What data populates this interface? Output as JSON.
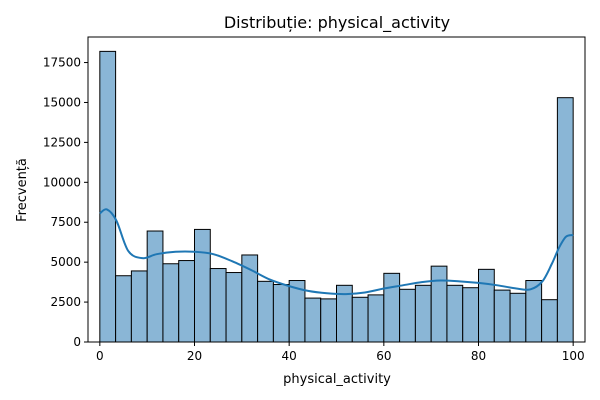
{
  "chart_data": {
    "type": "bar",
    "title": "Distribuție: physical_activity",
    "xlabel": "physical_activity",
    "ylabel": "Frecvență",
    "xlim": [
      -2.5,
      102.5
    ],
    "ylim": [
      0,
      19100
    ],
    "xticks": [
      0,
      20,
      40,
      60,
      80,
      100
    ],
    "xtick_labels": [
      "0",
      "20",
      "40",
      "60",
      "80",
      "100"
    ],
    "yticks": [
      0,
      2500,
      5000,
      7500,
      10000,
      12500,
      15000,
      17500
    ],
    "ytick_labels": [
      "0",
      "2500",
      "5000",
      "7500",
      "10000",
      "12500",
      "15000",
      "17500"
    ],
    "grid": false,
    "legend": false,
    "bin_edges": [
      0,
      3.333,
      6.667,
      10,
      13.333,
      16.667,
      20,
      23.333,
      26.667,
      30,
      33.333,
      36.667,
      40,
      43.333,
      46.667,
      50,
      53.333,
      56.667,
      60,
      63.333,
      66.667,
      70,
      73.333,
      76.667,
      80,
      83.333,
      86.667,
      90,
      93.333,
      96.667,
      100
    ],
    "values": [
      18200,
      4150,
      4450,
      6950,
      4900,
      5100,
      7050,
      4600,
      4350,
      5450,
      3800,
      3600,
      3850,
      2750,
      2700,
      3550,
      2800,
      2950,
      4300,
      3300,
      3550,
      4750,
      3550,
      3400,
      4550,
      3250,
      3050,
      3850,
      2650,
      15300
    ],
    "kde": {
      "x": [
        0,
        1.5,
        3.5,
        6,
        9,
        12,
        16,
        20,
        24,
        28,
        32,
        36,
        40,
        44,
        48,
        52,
        56,
        60,
        64,
        68,
        72,
        76,
        80,
        84,
        88,
        91,
        93.5,
        95.5,
        97,
        98.5,
        100
      ],
      "y": [
        8050,
        8300,
        7600,
        5700,
        5250,
        5500,
        5650,
        5650,
        5500,
        5050,
        4500,
        3900,
        3500,
        3200,
        3050,
        3000,
        3100,
        3350,
        3550,
        3750,
        3850,
        3800,
        3700,
        3550,
        3350,
        3300,
        3800,
        4900,
        5900,
        6600,
        6700
      ]
    },
    "colors": {
      "bar_fill": "#8ab6d6",
      "bar_edge": "#000000",
      "kde_line": "#1f77b4",
      "axes": "#000000"
    }
  }
}
